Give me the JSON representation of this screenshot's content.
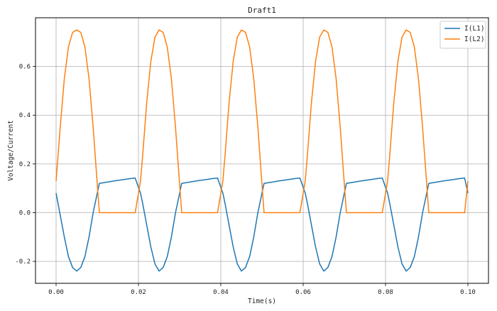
{
  "chart_data": {
    "type": "line",
    "title": "Draft1",
    "xlabel": "Time(s)",
    "ylabel": "Voltage/Current",
    "xlim": [
      -0.005,
      0.105
    ],
    "ylim": [
      -0.29,
      0.8
    ],
    "xticks": [
      0.0,
      0.02,
      0.04,
      0.06,
      0.08,
      0.1
    ],
    "xtick_labels": [
      "0.00",
      "0.02",
      "0.04",
      "0.06",
      "0.08",
      "0.10"
    ],
    "yticks": [
      -0.2,
      0.0,
      0.2,
      0.4,
      0.6
    ],
    "ytick_labels": [
      "-0.2",
      "0.0",
      "0.2",
      "0.4",
      "0.6"
    ],
    "grid": true,
    "legend_position": "top-right",
    "series": [
      {
        "name": "I(L1)",
        "color": "#1f77b4",
        "x": [
          0.0,
          0.001,
          0.002,
          0.003,
          0.004,
          0.005,
          0.006,
          0.007,
          0.008,
          0.009,
          0.0105,
          0.012,
          0.014,
          0.016,
          0.018,
          0.0192,
          0.0205,
          0.021,
          0.022,
          0.023,
          0.024,
          0.025,
          0.026,
          0.027,
          0.028,
          0.029,
          0.0305,
          0.032,
          0.034,
          0.036,
          0.038,
          0.0392,
          0.0405,
          0.041,
          0.042,
          0.043,
          0.044,
          0.045,
          0.046,
          0.047,
          0.048,
          0.049,
          0.0505,
          0.052,
          0.054,
          0.056,
          0.058,
          0.0592,
          0.0605,
          0.061,
          0.062,
          0.063,
          0.064,
          0.065,
          0.066,
          0.067,
          0.068,
          0.069,
          0.0705,
          0.072,
          0.074,
          0.076,
          0.078,
          0.0792,
          0.0805,
          0.081,
          0.082,
          0.083,
          0.084,
          0.085,
          0.086,
          0.087,
          0.088,
          0.089,
          0.0905,
          0.092,
          0.094,
          0.096,
          0.098,
          0.0992,
          0.1
        ],
        "y": [
          0.08,
          -0.01,
          -0.1,
          -0.18,
          -0.225,
          -0.24,
          -0.225,
          -0.18,
          -0.1,
          0.0,
          0.12,
          0.124,
          0.13,
          0.135,
          0.14,
          0.142,
          0.08,
          0.04,
          -0.05,
          -0.14,
          -0.21,
          -0.24,
          -0.225,
          -0.18,
          -0.1,
          0.0,
          0.12,
          0.124,
          0.13,
          0.135,
          0.14,
          0.142,
          0.08,
          0.04,
          -0.05,
          -0.14,
          -0.21,
          -0.24,
          -0.225,
          -0.18,
          -0.1,
          0.0,
          0.12,
          0.124,
          0.13,
          0.135,
          0.14,
          0.142,
          0.08,
          0.04,
          -0.05,
          -0.14,
          -0.21,
          -0.24,
          -0.225,
          -0.18,
          -0.1,
          0.0,
          0.12,
          0.124,
          0.13,
          0.135,
          0.14,
          0.142,
          0.08,
          0.04,
          -0.05,
          -0.14,
          -0.21,
          -0.24,
          -0.225,
          -0.18,
          -0.1,
          0.0,
          0.12,
          0.124,
          0.13,
          0.135,
          0.14,
          0.142,
          0.08
        ]
      },
      {
        "name": "I(L2)",
        "color": "#ff7f0e",
        "x": [
          0.0,
          0.001,
          0.002,
          0.003,
          0.004,
          0.005,
          0.006,
          0.007,
          0.008,
          0.009,
          0.0105,
          0.012,
          0.014,
          0.016,
          0.018,
          0.0192,
          0.0205,
          0.021,
          0.022,
          0.023,
          0.024,
          0.025,
          0.026,
          0.027,
          0.028,
          0.029,
          0.0305,
          0.032,
          0.034,
          0.036,
          0.038,
          0.0392,
          0.0405,
          0.041,
          0.042,
          0.043,
          0.044,
          0.045,
          0.046,
          0.047,
          0.048,
          0.049,
          0.0505,
          0.052,
          0.054,
          0.056,
          0.058,
          0.0592,
          0.0605,
          0.061,
          0.062,
          0.063,
          0.064,
          0.065,
          0.066,
          0.067,
          0.068,
          0.069,
          0.0705,
          0.072,
          0.074,
          0.076,
          0.078,
          0.0792,
          0.0805,
          0.081,
          0.082,
          0.083,
          0.084,
          0.085,
          0.086,
          0.087,
          0.088,
          0.089,
          0.0905,
          0.092,
          0.094,
          0.096,
          0.098,
          0.0992,
          0.1
        ],
        "y": [
          0.13,
          0.35,
          0.55,
          0.68,
          0.74,
          0.75,
          0.74,
          0.68,
          0.55,
          0.35,
          0.0,
          0.0,
          0.0,
          0.0,
          0.0,
          0.0,
          0.13,
          0.23,
          0.45,
          0.62,
          0.72,
          0.75,
          0.74,
          0.68,
          0.55,
          0.35,
          0.0,
          0.0,
          0.0,
          0.0,
          0.0,
          0.0,
          0.13,
          0.23,
          0.45,
          0.62,
          0.72,
          0.75,
          0.74,
          0.68,
          0.55,
          0.35,
          0.0,
          0.0,
          0.0,
          0.0,
          0.0,
          0.0,
          0.13,
          0.23,
          0.45,
          0.62,
          0.72,
          0.75,
          0.74,
          0.68,
          0.55,
          0.35,
          0.0,
          0.0,
          0.0,
          0.0,
          0.0,
          0.0,
          0.13,
          0.23,
          0.45,
          0.62,
          0.72,
          0.75,
          0.74,
          0.68,
          0.55,
          0.35,
          0.0,
          0.0,
          0.0,
          0.0,
          0.0,
          0.0,
          0.13
        ]
      }
    ]
  }
}
